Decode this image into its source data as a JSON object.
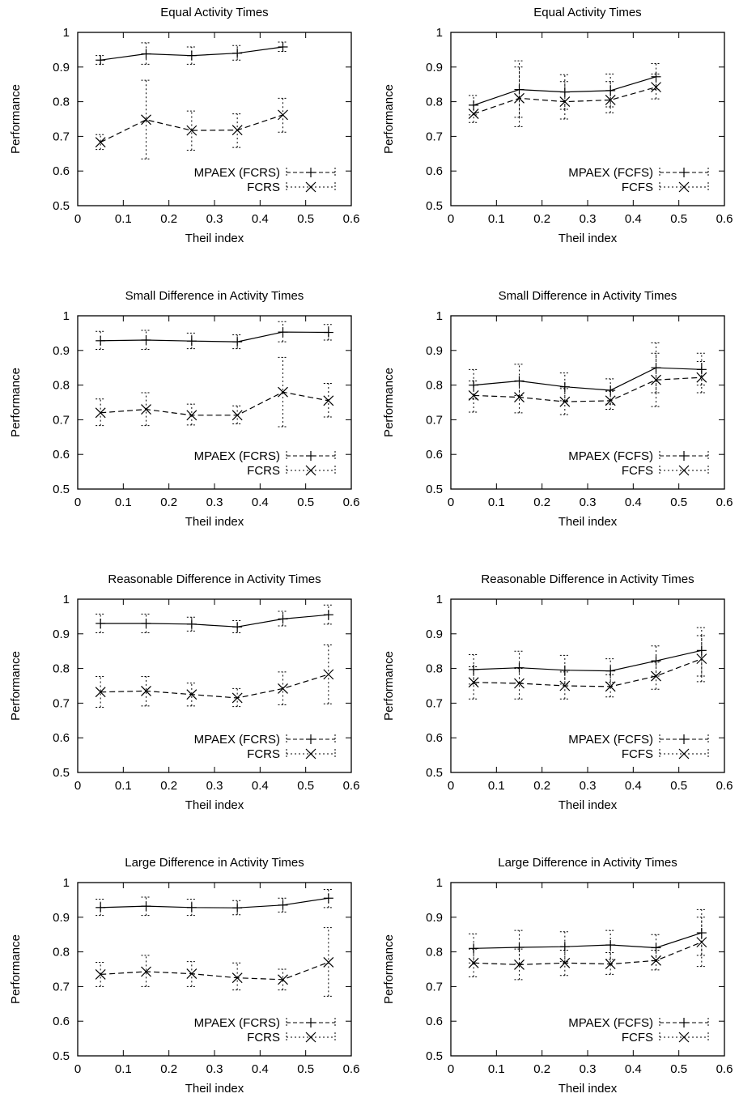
{
  "chart_data": [
    {
      "type": "line",
      "title": "Equal Activity Times",
      "xlabel": "Theil index",
      "ylabel": "Performance",
      "xlim": [
        0,
        0.6
      ],
      "ylim": [
        0.5,
        1
      ],
      "xticks": [
        "0",
        "0.1",
        "0.2",
        "0.3",
        "0.4",
        "0.5",
        "0.6"
      ],
      "yticks": [
        "0.5",
        "0.6",
        "0.7",
        "0.8",
        "0.9",
        "1"
      ],
      "legend_position": "bottom-right",
      "grid": false,
      "series": [
        {
          "name": "MPAEX (FCRS)",
          "marker": "plus",
          "line": "solid",
          "x": [
            0.05,
            0.15,
            0.25,
            0.35,
            0.45
          ],
          "y": [
            0.92,
            0.938,
            0.933,
            0.94,
            0.958
          ],
          "err_low": [
            0.908,
            0.908,
            0.908,
            0.92,
            0.945
          ],
          "err_high": [
            0.933,
            0.97,
            0.958,
            0.962,
            0.972
          ]
        },
        {
          "name": "FCRS",
          "marker": "x",
          "line": "dashed",
          "x": [
            0.05,
            0.15,
            0.25,
            0.35,
            0.45
          ],
          "y": [
            0.683,
            0.748,
            0.717,
            0.718,
            0.762
          ],
          "err_low": [
            0.662,
            0.635,
            0.66,
            0.668,
            0.712
          ],
          "err_high": [
            0.705,
            0.862,
            0.773,
            0.765,
            0.81
          ]
        }
      ]
    },
    {
      "type": "line",
      "title": "Equal Activity Times",
      "xlabel": "Theil index",
      "ylabel": "Performance",
      "xlim": [
        0,
        0.6
      ],
      "ylim": [
        0.5,
        1
      ],
      "xticks": [
        "0",
        "0.1",
        "0.2",
        "0.3",
        "0.4",
        "0.5",
        "0.6"
      ],
      "yticks": [
        "0.5",
        "0.6",
        "0.7",
        "0.8",
        "0.9",
        "1"
      ],
      "legend_position": "bottom-right",
      "grid": false,
      "series": [
        {
          "name": "MPAEX (FCFS)",
          "marker": "plus",
          "line": "solid",
          "x": [
            0.05,
            0.15,
            0.25,
            0.35,
            0.45
          ],
          "y": [
            0.79,
            0.835,
            0.828,
            0.832,
            0.872
          ],
          "err_low": [
            0.762,
            0.755,
            0.778,
            0.785,
            0.835
          ],
          "err_high": [
            0.818,
            0.918,
            0.878,
            0.88,
            0.91
          ]
        },
        {
          "name": "FCFS",
          "marker": "x",
          "line": "dashed",
          "x": [
            0.05,
            0.15,
            0.25,
            0.35,
            0.45
          ],
          "y": [
            0.765,
            0.81,
            0.8,
            0.805,
            0.842
          ],
          "err_low": [
            0.74,
            0.728,
            0.75,
            0.768,
            0.808
          ],
          "err_high": [
            0.79,
            0.9,
            0.858,
            0.858,
            0.88
          ]
        }
      ]
    },
    {
      "type": "line",
      "title": "Small Difference in Activity Times",
      "xlabel": "Theil index",
      "ylabel": "Performance",
      "xlim": [
        0,
        0.6
      ],
      "ylim": [
        0.5,
        1
      ],
      "xticks": [
        "0",
        "0.1",
        "0.2",
        "0.3",
        "0.4",
        "0.5",
        "0.6"
      ],
      "yticks": [
        "0.5",
        "0.6",
        "0.7",
        "0.8",
        "0.9",
        "1"
      ],
      "legend_position": "bottom-right",
      "grid": false,
      "series": [
        {
          "name": "MPAEX (FCRS)",
          "marker": "plus",
          "line": "solid",
          "x": [
            0.05,
            0.15,
            0.25,
            0.35,
            0.45,
            0.55
          ],
          "y": [
            0.928,
            0.93,
            0.927,
            0.925,
            0.953,
            0.952
          ],
          "err_low": [
            0.903,
            0.903,
            0.905,
            0.905,
            0.925,
            0.93
          ],
          "err_high": [
            0.955,
            0.958,
            0.95,
            0.945,
            0.983,
            0.975
          ]
        },
        {
          "name": "FCRS",
          "marker": "x",
          "line": "dashed",
          "x": [
            0.05,
            0.15,
            0.25,
            0.35,
            0.45,
            0.55
          ],
          "y": [
            0.72,
            0.73,
            0.713,
            0.713,
            0.78,
            0.755
          ],
          "err_low": [
            0.683,
            0.683,
            0.685,
            0.688,
            0.68,
            0.708
          ],
          "err_high": [
            0.76,
            0.778,
            0.745,
            0.74,
            0.88,
            0.805
          ]
        }
      ]
    },
    {
      "type": "line",
      "title": "Small Difference in Activity Times",
      "xlabel": "Theil index",
      "ylabel": "Performance",
      "xlim": [
        0,
        0.6
      ],
      "ylim": [
        0.5,
        1
      ],
      "xticks": [
        "0",
        "0.1",
        "0.2",
        "0.3",
        "0.4",
        "0.5",
        "0.6"
      ],
      "yticks": [
        "0.5",
        "0.6",
        "0.7",
        "0.8",
        "0.9",
        "1"
      ],
      "legend_position": "bottom-right",
      "grid": false,
      "series": [
        {
          "name": "MPAEX (FCFS)",
          "marker": "plus",
          "line": "solid",
          "x": [
            0.05,
            0.15,
            0.25,
            0.35,
            0.45,
            0.55
          ],
          "y": [
            0.8,
            0.812,
            0.795,
            0.785,
            0.85,
            0.845
          ],
          "err_low": [
            0.76,
            0.77,
            0.755,
            0.745,
            0.778,
            0.8
          ],
          "err_high": [
            0.845,
            0.86,
            0.835,
            0.818,
            0.922,
            0.892
          ]
        },
        {
          "name": "FCFS",
          "marker": "x",
          "line": "dashed",
          "x": [
            0.05,
            0.15,
            0.25,
            0.35,
            0.45,
            0.55
          ],
          "y": [
            0.77,
            0.765,
            0.752,
            0.755,
            0.815,
            0.822
          ],
          "err_low": [
            0.722,
            0.72,
            0.715,
            0.73,
            0.738,
            0.778
          ],
          "err_high": [
            0.812,
            0.812,
            0.79,
            0.782,
            0.892,
            0.868
          ]
        }
      ]
    },
    {
      "type": "line",
      "title": "Reasonable Difference in Activity Times",
      "xlabel": "Theil index",
      "ylabel": "Performance",
      "xlim": [
        0,
        0.6
      ],
      "ylim": [
        0.5,
        1
      ],
      "xticks": [
        "0",
        "0.1",
        "0.2",
        "0.3",
        "0.4",
        "0.5",
        "0.6"
      ],
      "yticks": [
        "0.5",
        "0.6",
        "0.7",
        "0.8",
        "0.9",
        "1"
      ],
      "legend_position": "bottom-right",
      "grid": false,
      "series": [
        {
          "name": "MPAEX (FCRS)",
          "marker": "plus",
          "line": "solid",
          "x": [
            0.05,
            0.15,
            0.25,
            0.35,
            0.45,
            0.55
          ],
          "y": [
            0.93,
            0.93,
            0.928,
            0.92,
            0.943,
            0.955
          ],
          "err_low": [
            0.903,
            0.903,
            0.908,
            0.903,
            0.923,
            0.928
          ],
          "err_high": [
            0.957,
            0.957,
            0.948,
            0.938,
            0.965,
            0.983
          ]
        },
        {
          "name": "FCRS",
          "marker": "x",
          "line": "dashed",
          "x": [
            0.05,
            0.15,
            0.25,
            0.35,
            0.45,
            0.55
          ],
          "y": [
            0.732,
            0.735,
            0.725,
            0.715,
            0.742,
            0.783
          ],
          "err_low": [
            0.688,
            0.692,
            0.692,
            0.69,
            0.695,
            0.698
          ],
          "err_high": [
            0.777,
            0.777,
            0.758,
            0.742,
            0.79,
            0.868
          ]
        }
      ]
    },
    {
      "type": "line",
      "title": "Reasonable Difference in Activity Times",
      "xlabel": "Theil index",
      "ylabel": "Performance",
      "xlim": [
        0,
        0.6
      ],
      "ylim": [
        0.5,
        1
      ],
      "xticks": [
        "0",
        "0.1",
        "0.2",
        "0.3",
        "0.4",
        "0.5",
        "0.6"
      ],
      "yticks": [
        "0.5",
        "0.6",
        "0.7",
        "0.8",
        "0.9",
        "1"
      ],
      "legend_position": "bottom-right",
      "grid": false,
      "series": [
        {
          "name": "MPAEX (FCFS)",
          "marker": "plus",
          "line": "solid",
          "x": [
            0.05,
            0.15,
            0.25,
            0.35,
            0.45,
            0.55
          ],
          "y": [
            0.797,
            0.802,
            0.795,
            0.793,
            0.822,
            0.852
          ],
          "err_low": [
            0.755,
            0.758,
            0.755,
            0.76,
            0.778,
            0.778
          ],
          "err_high": [
            0.84,
            0.85,
            0.838,
            0.828,
            0.865,
            0.918
          ]
        },
        {
          "name": "FCFS",
          "marker": "x",
          "line": "dashed",
          "x": [
            0.05,
            0.15,
            0.25,
            0.35,
            0.45,
            0.55
          ],
          "y": [
            0.76,
            0.757,
            0.75,
            0.748,
            0.778,
            0.828
          ],
          "err_low": [
            0.712,
            0.712,
            0.712,
            0.718,
            0.74,
            0.762
          ],
          "err_high": [
            0.805,
            0.8,
            0.79,
            0.782,
            0.818,
            0.895
          ]
        }
      ]
    },
    {
      "type": "line",
      "title": "Large Difference in Activity Times",
      "xlabel": "Theil index",
      "ylabel": "Performance",
      "xlim": [
        0,
        0.6
      ],
      "ylim": [
        0.5,
        1
      ],
      "xticks": [
        "0",
        "0.1",
        "0.2",
        "0.3",
        "0.4",
        "0.5",
        "0.6"
      ],
      "yticks": [
        "0.5",
        "0.6",
        "0.7",
        "0.8",
        "0.9",
        "1"
      ],
      "legend_position": "bottom-right",
      "grid": false,
      "series": [
        {
          "name": "MPAEX (FCRS)",
          "marker": "plus",
          "line": "solid",
          "x": [
            0.05,
            0.15,
            0.25,
            0.35,
            0.45,
            0.55
          ],
          "y": [
            0.928,
            0.932,
            0.928,
            0.927,
            0.935,
            0.955
          ],
          "err_low": [
            0.905,
            0.905,
            0.905,
            0.907,
            0.915,
            0.928
          ],
          "err_high": [
            0.952,
            0.958,
            0.952,
            0.948,
            0.955,
            0.98
          ]
        },
        {
          "name": "FCRS",
          "marker": "x",
          "line": "dashed",
          "x": [
            0.05,
            0.15,
            0.25,
            0.35,
            0.45,
            0.55
          ],
          "y": [
            0.735,
            0.743,
            0.737,
            0.725,
            0.72,
            0.77
          ],
          "err_low": [
            0.7,
            0.7,
            0.7,
            0.69,
            0.69,
            0.672
          ],
          "err_high": [
            0.77,
            0.79,
            0.772,
            0.768,
            0.75,
            0.87
          ]
        }
      ]
    },
    {
      "type": "line",
      "title": "Large Difference in Activity Times",
      "xlabel": "Theil index",
      "ylabel": "Performance",
      "xlim": [
        0,
        0.6
      ],
      "ylim": [
        0.5,
        1
      ],
      "xticks": [
        "0",
        "0.1",
        "0.2",
        "0.3",
        "0.4",
        "0.5",
        "0.6"
      ],
      "yticks": [
        "0.5",
        "0.6",
        "0.7",
        "0.8",
        "0.9",
        "1"
      ],
      "legend_position": "bottom-right",
      "grid": false,
      "series": [
        {
          "name": "MPAEX (FCFS)",
          "marker": "plus",
          "line": "solid",
          "x": [
            0.05,
            0.15,
            0.25,
            0.35,
            0.45,
            0.55
          ],
          "y": [
            0.81,
            0.813,
            0.815,
            0.82,
            0.812,
            0.855
          ],
          "err_low": [
            0.768,
            0.765,
            0.772,
            0.778,
            0.775,
            0.79
          ],
          "err_high": [
            0.852,
            0.862,
            0.858,
            0.862,
            0.85,
            0.922
          ]
        },
        {
          "name": "FCFS",
          "marker": "x",
          "line": "dashed",
          "x": [
            0.05,
            0.15,
            0.25,
            0.35,
            0.45,
            0.55
          ],
          "y": [
            0.768,
            0.763,
            0.768,
            0.765,
            0.775,
            0.828
          ],
          "err_low": [
            0.728,
            0.72,
            0.732,
            0.735,
            0.748,
            0.758
          ],
          "err_high": [
            0.808,
            0.808,
            0.805,
            0.798,
            0.805,
            0.9
          ]
        }
      ]
    }
  ]
}
